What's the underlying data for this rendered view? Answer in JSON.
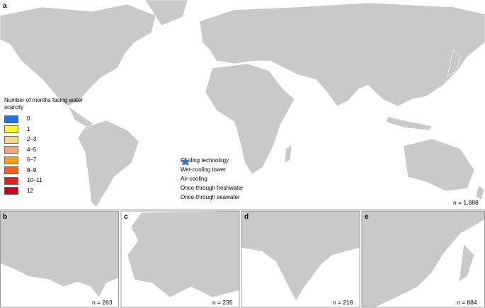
{
  "panels": [
    {
      "letter": "a",
      "n_label": "n = 1,888"
    },
    {
      "letter": "b",
      "n_label": "n = 263"
    },
    {
      "letter": "c",
      "n_label": "n = 235"
    },
    {
      "letter": "d",
      "n_label": "n = 218"
    },
    {
      "letter": "e",
      "n_label": "n = 884"
    }
  ],
  "scarcity_legend": {
    "title": "Number of months facing water scarcity",
    "items": [
      {
        "label": "0",
        "color": "#1f6fe8"
      },
      {
        "label": "1",
        "color": "#fff533"
      },
      {
        "label": "2–3",
        "color": "#fdd58a"
      },
      {
        "label": "4–5",
        "color": "#f8a37a"
      },
      {
        "label": "6–7",
        "color": "#f7a21b"
      },
      {
        "label": "8–9",
        "color": "#f0621e"
      },
      {
        "label": "10–11",
        "color": "#e0201e"
      },
      {
        "label": "12",
        "color": "#d4001a"
      }
    ]
  },
  "cooling_legend": {
    "title": "Cooling technology",
    "items": [
      "Wet-cooling tower",
      "Air-cooling",
      "Once-through freshwater",
      "Once-through seawater"
    ]
  }
}
